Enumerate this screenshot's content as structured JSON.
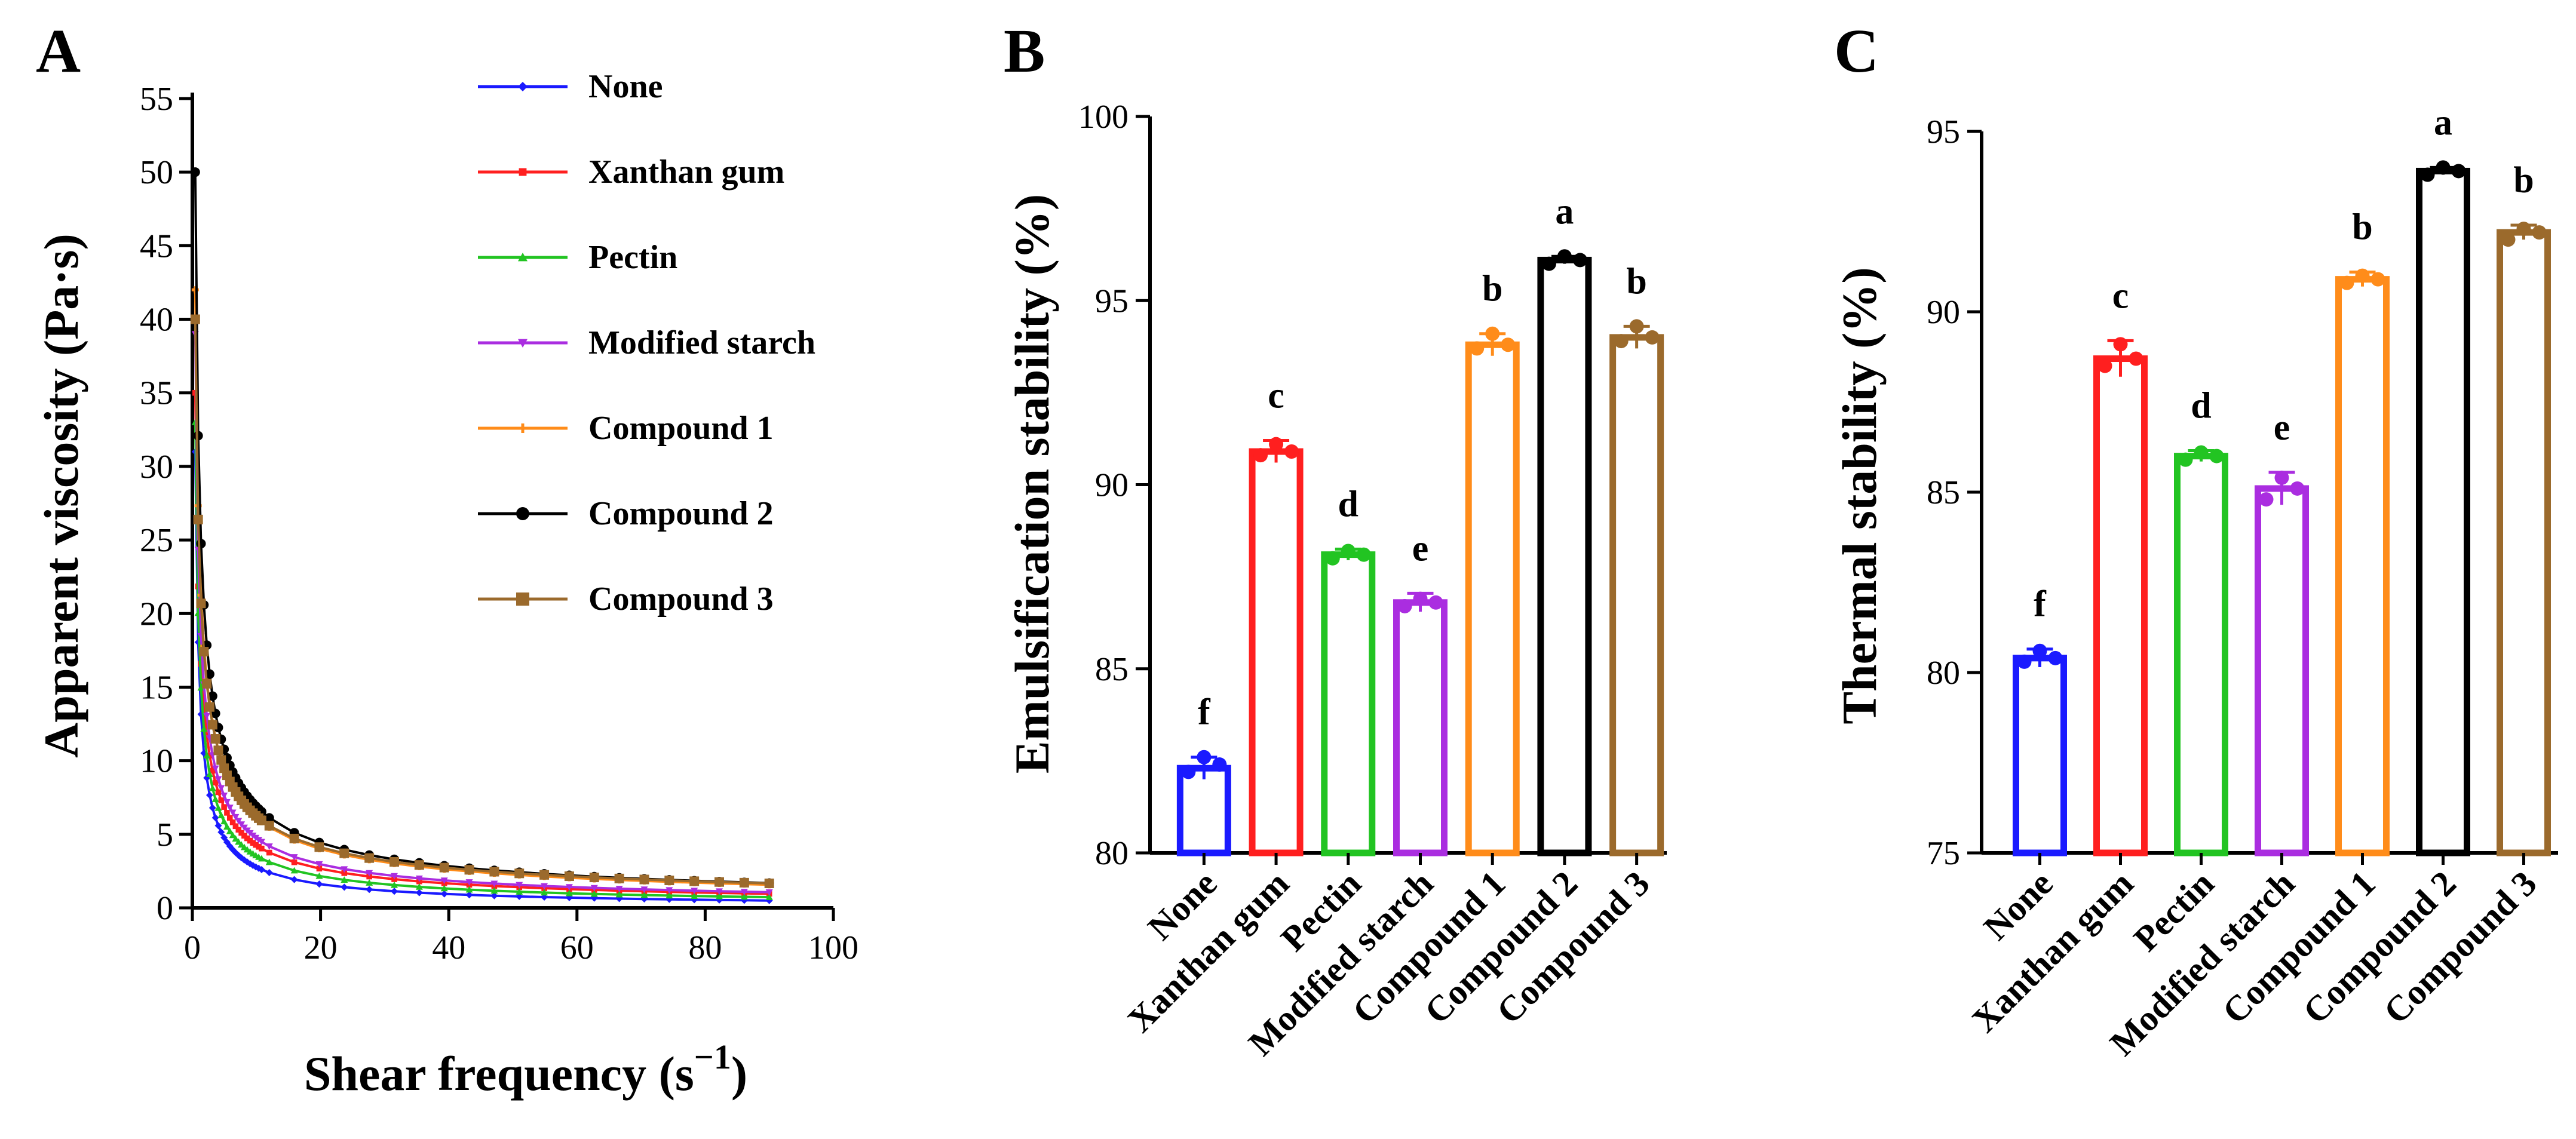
{
  "colors": {
    "None": "#1a1aff",
    "Xanthan gum": "#ff1f1f",
    "Pectin": "#22c422",
    "Modified starch": "#aa2de0",
    "Compound 1": "#ff8c1a",
    "Compound 2": "#000000",
    "Compound 3": "#9b6a2c"
  },
  "chart_data": [
    {
      "panel": "A",
      "type": "line",
      "xlabel_main": "Shear frequency (s",
      "xlabel_sup": "−1",
      "xlabel_close": ")",
      "ylabel": "Apparent viscosity (Pa·s)",
      "xlim": [
        0,
        100
      ],
      "ylim": [
        0,
        55
      ],
      "xticks": [
        0,
        20,
        40,
        60,
        80,
        100
      ],
      "yticks": [
        0,
        5,
        10,
        15,
        20,
        25,
        30,
        35,
        40,
        45,
        50,
        55
      ],
      "legend_position": "top-right",
      "series": [
        {
          "name": "None",
          "marker": "diamond",
          "k": 31,
          "a": 0.78
        },
        {
          "name": "Xanthan gum",
          "marker": "square-small",
          "k": 35,
          "a": 0.68
        },
        {
          "name": "Pectin",
          "marker": "triangle",
          "k": 33,
          "a": 0.72
        },
        {
          "name": "Modified starch",
          "marker": "triangle-down",
          "k": 39,
          "a": 0.68
        },
        {
          "name": "Compound 1",
          "marker": "plus",
          "k": 42,
          "a": 0.62
        },
        {
          "name": "Compound 2",
          "marker": "circle",
          "k": 50,
          "a": 0.64
        },
        {
          "name": "Compound 3",
          "marker": "square",
          "k": 40,
          "a": 0.6
        }
      ]
    },
    {
      "panel": "B",
      "type": "bar",
      "ylabel": "Emulsification stability (%)",
      "ylim": [
        80,
        100
      ],
      "yticks": [
        80,
        85,
        90,
        95,
        100
      ],
      "categories": [
        "None",
        "Xanthan gum",
        "Pectin",
        "Modified starch",
        "Compound 1",
        "Compound 2",
        "Compound 3"
      ],
      "values": [
        82.3,
        90.9,
        88.1,
        86.8,
        93.8,
        96.1,
        94.0
      ],
      "errors": [
        0.3,
        0.3,
        0.15,
        0.25,
        0.3,
        0.1,
        0.3
      ],
      "points": [
        [
          82.2,
          82.6,
          82.4
        ],
        [
          90.8,
          91.1,
          90.9
        ],
        [
          88.0,
          88.2,
          88.1
        ],
        [
          86.7,
          86.9,
          86.8
        ],
        [
          93.7,
          94.1,
          93.8
        ],
        [
          96.0,
          96.2,
          96.1
        ],
        [
          93.9,
          94.3,
          94.0
        ]
      ],
      "significance": [
        "f",
        "c",
        "d",
        "e",
        "b",
        "a",
        "b"
      ]
    },
    {
      "panel": "C",
      "type": "bar",
      "ylabel": "Thermal stability (%)",
      "ylim": [
        75,
        95
      ],
      "yticks": [
        75,
        80,
        85,
        90,
        95
      ],
      "categories": [
        "None",
        "Xanthan gum",
        "Pectin",
        "Modified starch",
        "Compound 1",
        "Compound 2",
        "Compound 3"
      ],
      "values": [
        80.4,
        88.7,
        86.0,
        85.1,
        90.9,
        93.9,
        92.2
      ],
      "errors": [
        0.25,
        0.5,
        0.15,
        0.45,
        0.2,
        0.1,
        0.2
      ],
      "points": [
        [
          80.3,
          80.6,
          80.4
        ],
        [
          88.5,
          89.1,
          88.7
        ],
        [
          85.9,
          86.1,
          86.0
        ],
        [
          84.8,
          85.4,
          85.1
        ],
        [
          90.8,
          91.0,
          90.9
        ],
        [
          93.8,
          94.0,
          93.9
        ],
        [
          92.0,
          92.3,
          92.2
        ]
      ],
      "significance": [
        "f",
        "c",
        "d",
        "e",
        "b",
        "a",
        "b"
      ]
    }
  ]
}
